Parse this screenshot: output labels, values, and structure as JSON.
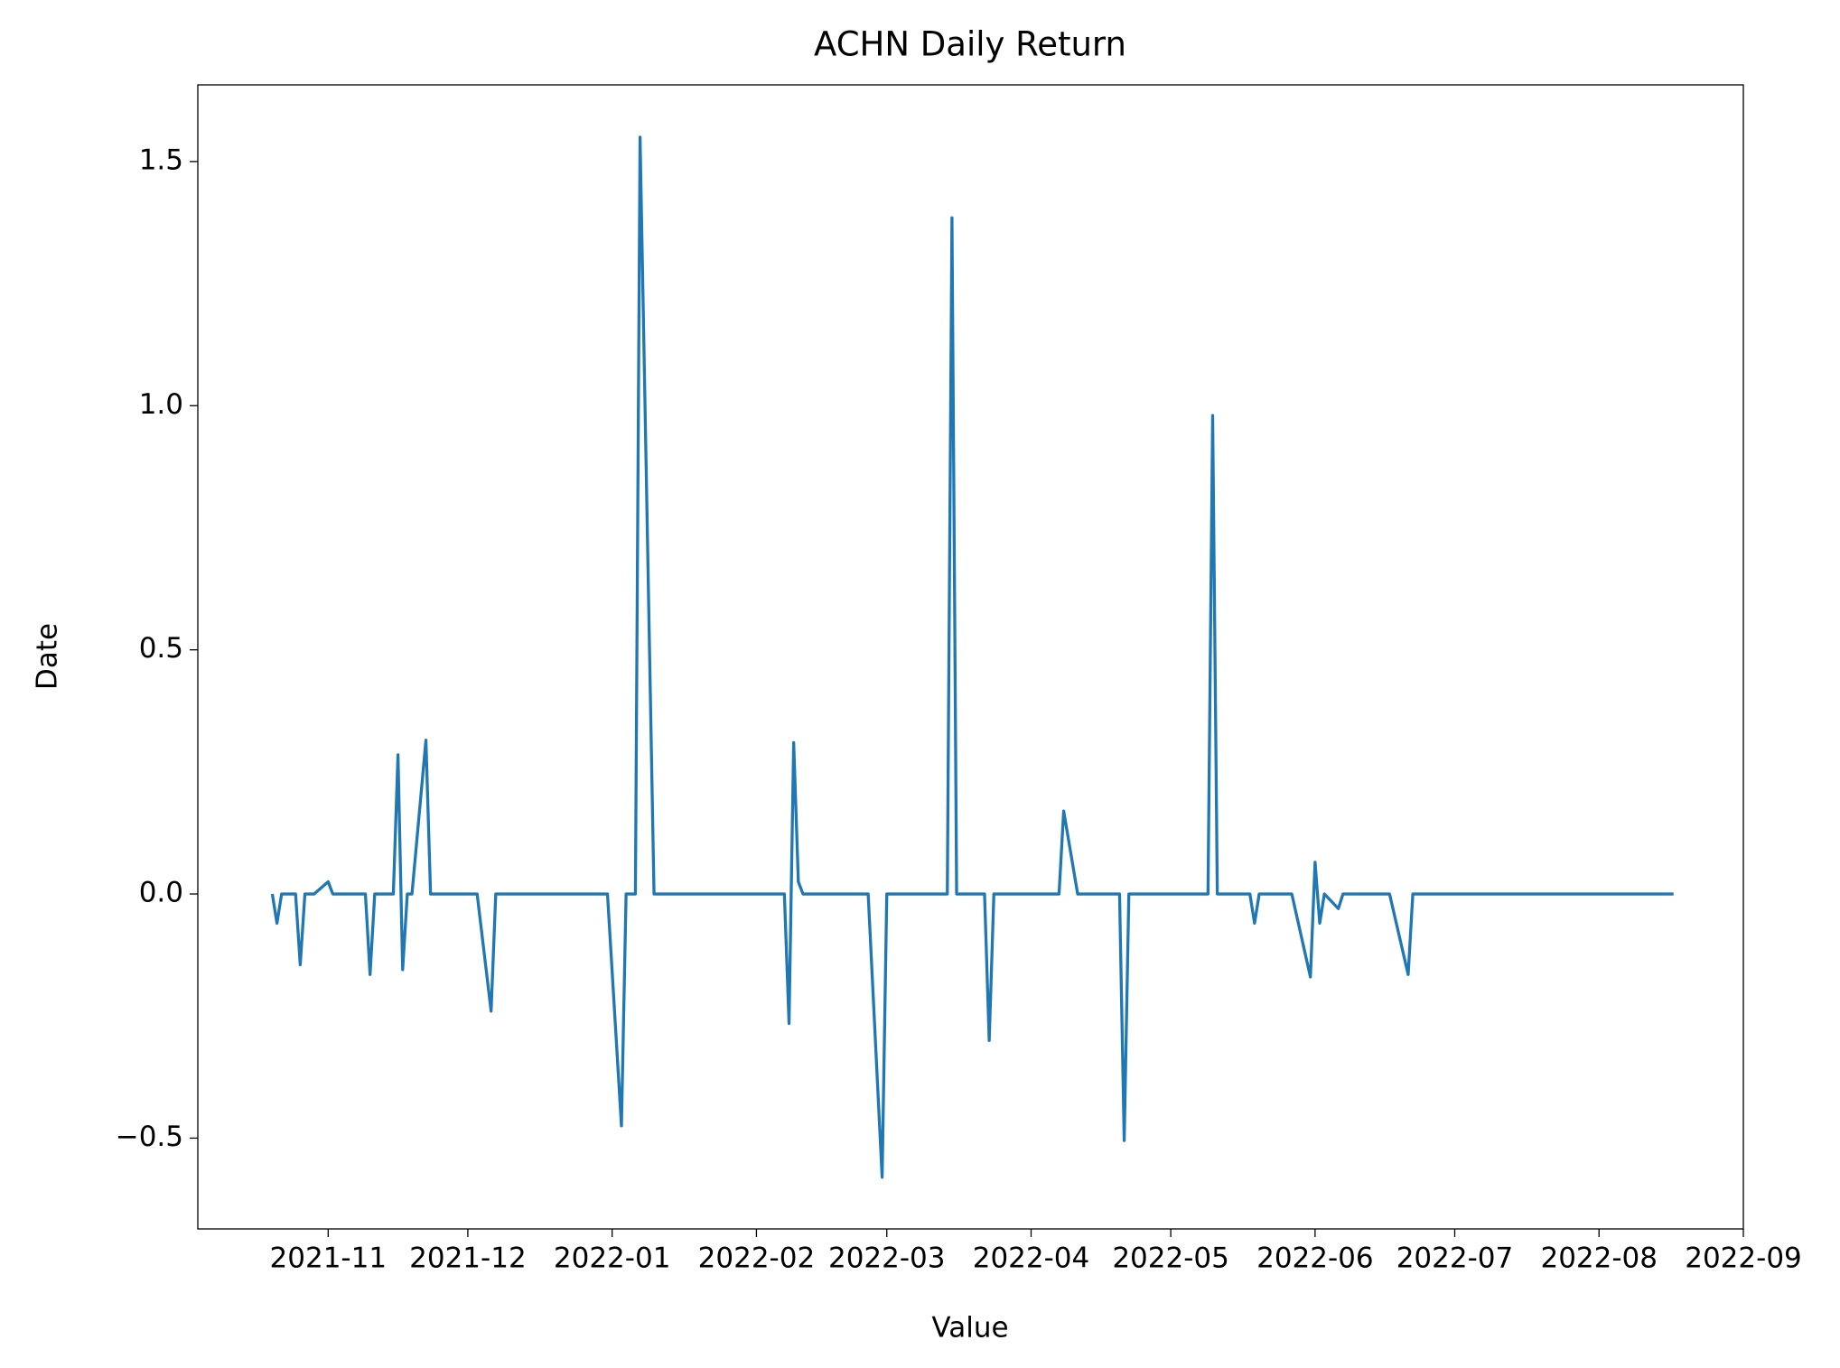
{
  "chart_data": {
    "type": "line",
    "title": "ACHN Daily Return",
    "x_label": "Value",
    "y_label": "Date",
    "color": "#1f77b4",
    "x": [
      "2021-10-20",
      "2021-10-21",
      "2021-10-22",
      "2021-10-25",
      "2021-10-26",
      "2021-10-27",
      "2021-10-29",
      "2021-11-01",
      "2021-11-02",
      "2021-11-09",
      "2021-11-10",
      "2021-11-11",
      "2021-11-15",
      "2021-11-16",
      "2021-11-17",
      "2021-11-18",
      "2021-11-19",
      "2021-11-22",
      "2021-11-23",
      "2021-12-03",
      "2021-12-06",
      "2021-12-07",
      "2021-12-31",
      "2022-01-03",
      "2022-01-04",
      "2022-01-06",
      "2022-01-07",
      "2022-01-10",
      "2022-02-07",
      "2022-02-08",
      "2022-02-09",
      "2022-02-10",
      "2022-02-11",
      "2022-02-25",
      "2022-02-28",
      "2022-03-01",
      "2022-03-14",
      "2022-03-15",
      "2022-03-16",
      "2022-03-22",
      "2022-03-23",
      "2022-03-24",
      "2022-04-07",
      "2022-04-08",
      "2022-04-11",
      "2022-04-20",
      "2022-04-21",
      "2022-04-22",
      "2022-05-09",
      "2022-05-10",
      "2022-05-11",
      "2022-05-18",
      "2022-05-19",
      "2022-05-20",
      "2022-05-27",
      "2022-05-31",
      "2022-06-01",
      "2022-06-02",
      "2022-06-03",
      "2022-06-06",
      "2022-06-07",
      "2022-06-17",
      "2022-06-21",
      "2022-06-22",
      "2022-08-17"
    ],
    "values": [
      0,
      -0.06,
      0,
      0,
      -0.145,
      0,
      0,
      0.025,
      0,
      0,
      -0.165,
      0,
      0,
      0.285,
      -0.155,
      0,
      0,
      0.315,
      0,
      0,
      -0.24,
      0,
      0,
      -0.475,
      0,
      0,
      1.55,
      0,
      0,
      -0.265,
      0.31,
      0.025,
      0,
      0,
      -0.58,
      0,
      0,
      1.385,
      0,
      0,
      -0.3,
      0,
      0,
      0.17,
      0,
      0,
      -0.505,
      0,
      0,
      0.98,
      0,
      0,
      -0.06,
      0,
      0,
      -0.17,
      0.065,
      -0.06,
      0,
      -0.03,
      0,
      0,
      -0.165,
      0,
      0
    ],
    "xlim": [
      "2021-10-04",
      "2022-09-01"
    ],
    "xticks": [
      "2021-11",
      "2021-12",
      "2022-01",
      "2022-02",
      "2022-03",
      "2022-04",
      "2022-05",
      "2022-06",
      "2022-07",
      "2022-08",
      "2022-09"
    ],
    "ylim": [
      -0.686,
      1.657
    ],
    "yticks": [
      {
        "value": -0.5,
        "label": "−0.5"
      },
      {
        "value": 0,
        "label": "0.0"
      },
      {
        "value": 0.5,
        "label": "0.5"
      },
      {
        "value": 1,
        "label": "1.0"
      },
      {
        "value": 1.5,
        "label": "1.5"
      }
    ],
    "grid": false
  }
}
